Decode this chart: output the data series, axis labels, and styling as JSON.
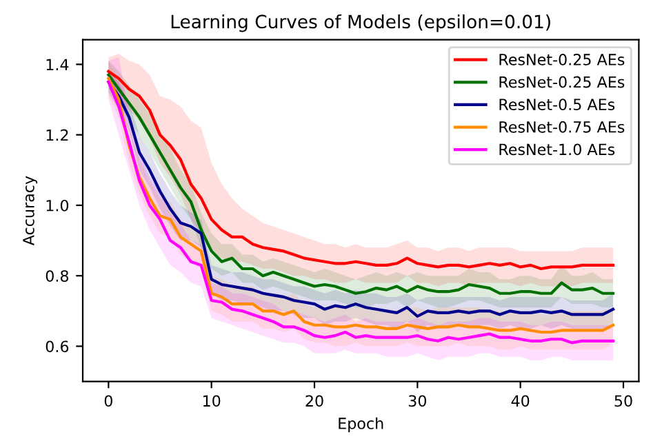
{
  "chart_data": {
    "type": "line",
    "title": "Learning Curves of Models (epsilon=0.01)",
    "xlabel": "Epoch",
    "ylabel": "Accuracy",
    "x": [
      0,
      1,
      2,
      3,
      4,
      5,
      6,
      7,
      8,
      9,
      10,
      11,
      12,
      13,
      14,
      15,
      16,
      17,
      18,
      19,
      20,
      21,
      22,
      23,
      24,
      25,
      26,
      27,
      28,
      29,
      30,
      31,
      32,
      33,
      34,
      35,
      36,
      37,
      38,
      39,
      40,
      41,
      42,
      43,
      44,
      45,
      46,
      47,
      48,
      49
    ],
    "xlim": [
      -2.5,
      51.5
    ],
    "xticks": [
      0,
      10,
      20,
      30,
      40,
      50
    ],
    "ylim": [
      0.5,
      1.47
    ],
    "yticks": [
      0.6,
      0.8,
      {
        "value": 1.0,
        "label": "1.0"
      },
      1.2,
      1.4
    ],
    "legend": "top right",
    "grid": false,
    "series": [
      {
        "name": "ResNet-0.25 AEs",
        "color": "#ff0000",
        "values": [
          1.38,
          1.36,
          1.33,
          1.31,
          1.27,
          1.2,
          1.17,
          1.13,
          1.06,
          1.02,
          0.96,
          0.93,
          0.91,
          0.91,
          0.89,
          0.88,
          0.875,
          0.87,
          0.86,
          0.85,
          0.845,
          0.84,
          0.835,
          0.835,
          0.84,
          0.835,
          0.83,
          0.83,
          0.835,
          0.85,
          0.835,
          0.83,
          0.825,
          0.83,
          0.83,
          0.825,
          0.83,
          0.835,
          0.83,
          0.835,
          0.825,
          0.83,
          0.82,
          0.825,
          0.825,
          0.825,
          0.83,
          0.83,
          0.83,
          0.83
        ],
        "upper": [
          1.42,
          1.43,
          1.41,
          1.4,
          1.37,
          1.31,
          1.3,
          1.28,
          1.24,
          1.22,
          1.12,
          1.06,
          1.02,
          0.99,
          0.97,
          0.95,
          0.94,
          0.93,
          0.92,
          0.91,
          0.9,
          0.89,
          0.89,
          0.88,
          0.89,
          0.88,
          0.88,
          0.88,
          0.89,
          0.9,
          0.88,
          0.88,
          0.87,
          0.88,
          0.88,
          0.87,
          0.88,
          0.88,
          0.88,
          0.88,
          0.87,
          0.87,
          0.87,
          0.87,
          0.87,
          0.87,
          0.88,
          0.88,
          0.88,
          0.88
        ],
        "lower": [
          1.34,
          1.31,
          1.27,
          1.24,
          1.19,
          1.12,
          1.08,
          1.03,
          0.96,
          0.92,
          0.87,
          0.85,
          0.84,
          0.84,
          0.83,
          0.82,
          0.82,
          0.81,
          0.8,
          0.8,
          0.79,
          0.79,
          0.78,
          0.78,
          0.79,
          0.78,
          0.78,
          0.78,
          0.78,
          0.8,
          0.78,
          0.78,
          0.77,
          0.78,
          0.78,
          0.77,
          0.78,
          0.78,
          0.78,
          0.78,
          0.77,
          0.78,
          0.77,
          0.77,
          0.77,
          0.77,
          0.78,
          0.78,
          0.78,
          0.78
        ]
      },
      {
        "name": "ResNet-0.25 AEs",
        "color": "#007000",
        "values": [
          1.37,
          1.33,
          1.29,
          1.25,
          1.2,
          1.15,
          1.1,
          1.05,
          1.01,
          0.93,
          0.87,
          0.84,
          0.85,
          0.82,
          0.82,
          0.8,
          0.81,
          0.8,
          0.79,
          0.78,
          0.77,
          0.775,
          0.77,
          0.76,
          0.75,
          0.755,
          0.765,
          0.76,
          0.77,
          0.755,
          0.77,
          0.76,
          0.755,
          0.755,
          0.76,
          0.775,
          0.77,
          0.765,
          0.75,
          0.75,
          0.755,
          0.755,
          0.75,
          0.75,
          0.78,
          0.76,
          0.76,
          0.765,
          0.75,
          0.75
        ],
        "upper": [
          1.41,
          1.38,
          1.34,
          1.3,
          1.26,
          1.21,
          1.16,
          1.1,
          1.06,
          0.98,
          0.92,
          0.89,
          0.89,
          0.86,
          0.86,
          0.84,
          0.85,
          0.84,
          0.83,
          0.82,
          0.81,
          0.82,
          0.81,
          0.8,
          0.79,
          0.8,
          0.81,
          0.8,
          0.81,
          0.8,
          0.81,
          0.8,
          0.8,
          0.8,
          0.8,
          0.82,
          0.81,
          0.81,
          0.79,
          0.79,
          0.8,
          0.8,
          0.79,
          0.79,
          0.83,
          0.8,
          0.8,
          0.81,
          0.79,
          0.79
        ],
        "lower": [
          1.33,
          1.29,
          1.24,
          1.2,
          1.15,
          1.1,
          1.05,
          1.0,
          0.96,
          0.88,
          0.82,
          0.8,
          0.81,
          0.78,
          0.78,
          0.76,
          0.77,
          0.76,
          0.75,
          0.74,
          0.73,
          0.73,
          0.73,
          0.72,
          0.71,
          0.71,
          0.72,
          0.72,
          0.73,
          0.71,
          0.73,
          0.72,
          0.71,
          0.71,
          0.72,
          0.73,
          0.73,
          0.72,
          0.71,
          0.71,
          0.71,
          0.71,
          0.71,
          0.71,
          0.74,
          0.72,
          0.72,
          0.72,
          0.71,
          0.71
        ]
      },
      {
        "name": "ResNet-0.5 AEs",
        "color": "#00008b",
        "values": [
          1.35,
          1.31,
          1.25,
          1.15,
          1.1,
          1.04,
          0.99,
          0.95,
          0.94,
          0.92,
          0.79,
          0.775,
          0.77,
          0.765,
          0.76,
          0.75,
          0.745,
          0.74,
          0.73,
          0.725,
          0.72,
          0.705,
          0.715,
          0.71,
          0.72,
          0.71,
          0.705,
          0.7,
          0.695,
          0.71,
          0.685,
          0.7,
          0.695,
          0.695,
          0.7,
          0.695,
          0.7,
          0.7,
          0.69,
          0.7,
          0.695,
          0.695,
          0.7,
          0.695,
          0.7,
          0.69,
          0.69,
          0.69,
          0.69,
          0.705
        ],
        "upper": [
          1.38,
          1.35,
          1.29,
          1.2,
          1.15,
          1.09,
          1.04,
          1.0,
          0.98,
          0.96,
          0.83,
          0.82,
          0.81,
          0.81,
          0.8,
          0.79,
          0.79,
          0.78,
          0.77,
          0.77,
          0.76,
          0.75,
          0.76,
          0.75,
          0.76,
          0.75,
          0.75,
          0.74,
          0.74,
          0.75,
          0.73,
          0.74,
          0.74,
          0.74,
          0.74,
          0.74,
          0.74,
          0.74,
          0.73,
          0.74,
          0.74,
          0.74,
          0.74,
          0.74,
          0.74,
          0.73,
          0.73,
          0.73,
          0.73,
          0.75
        ],
        "lower": [
          1.32,
          1.27,
          1.21,
          1.1,
          1.05,
          0.99,
          0.94,
          0.9,
          0.9,
          0.88,
          0.75,
          0.73,
          0.73,
          0.72,
          0.72,
          0.71,
          0.7,
          0.7,
          0.69,
          0.68,
          0.68,
          0.66,
          0.67,
          0.67,
          0.68,
          0.67,
          0.66,
          0.66,
          0.65,
          0.67,
          0.64,
          0.66,
          0.65,
          0.65,
          0.66,
          0.65,
          0.66,
          0.66,
          0.65,
          0.66,
          0.65,
          0.65,
          0.66,
          0.65,
          0.66,
          0.65,
          0.65,
          0.65,
          0.65,
          0.66
        ]
      },
      {
        "name": "ResNet-0.75 AEs",
        "color": "#ff8c00",
        "values": [
          1.36,
          1.3,
          1.17,
          1.08,
          1.02,
          0.97,
          0.96,
          0.91,
          0.89,
          0.87,
          0.75,
          0.74,
          0.72,
          0.72,
          0.72,
          0.7,
          0.7,
          0.69,
          0.7,
          0.67,
          0.66,
          0.66,
          0.655,
          0.655,
          0.66,
          0.655,
          0.655,
          0.65,
          0.65,
          0.66,
          0.655,
          0.65,
          0.655,
          0.655,
          0.66,
          0.655,
          0.655,
          0.65,
          0.645,
          0.645,
          0.65,
          0.645,
          0.64,
          0.64,
          0.645,
          0.645,
          0.645,
          0.645,
          0.645,
          0.66
        ],
        "upper": [
          1.41,
          1.35,
          1.22,
          1.13,
          1.07,
          1.02,
          1.01,
          0.96,
          0.94,
          0.92,
          0.8,
          0.79,
          0.77,
          0.77,
          0.77,
          0.75,
          0.75,
          0.74,
          0.75,
          0.72,
          0.71,
          0.71,
          0.71,
          0.71,
          0.71,
          0.71,
          0.71,
          0.7,
          0.7,
          0.71,
          0.71,
          0.7,
          0.71,
          0.71,
          0.71,
          0.71,
          0.71,
          0.7,
          0.7,
          0.7,
          0.7,
          0.7,
          0.69,
          0.69,
          0.7,
          0.7,
          0.7,
          0.7,
          0.7,
          0.71
        ],
        "lower": [
          1.31,
          1.25,
          1.12,
          1.03,
          0.97,
          0.92,
          0.91,
          0.86,
          0.84,
          0.82,
          0.7,
          0.69,
          0.67,
          0.67,
          0.67,
          0.65,
          0.65,
          0.64,
          0.65,
          0.62,
          0.61,
          0.61,
          0.6,
          0.6,
          0.61,
          0.6,
          0.6,
          0.6,
          0.6,
          0.61,
          0.6,
          0.6,
          0.6,
          0.6,
          0.61,
          0.6,
          0.6,
          0.6,
          0.59,
          0.59,
          0.6,
          0.59,
          0.59,
          0.59,
          0.59,
          0.59,
          0.59,
          0.59,
          0.59,
          0.61
        ]
      },
      {
        "name": "ResNet-1.0 AEs",
        "color": "#ff00ff",
        "values": [
          1.35,
          1.28,
          1.18,
          1.07,
          1.0,
          0.96,
          0.9,
          0.88,
          0.84,
          0.83,
          0.73,
          0.725,
          0.705,
          0.7,
          0.69,
          0.68,
          0.67,
          0.655,
          0.655,
          0.645,
          0.63,
          0.625,
          0.63,
          0.64,
          0.625,
          0.63,
          0.625,
          0.625,
          0.625,
          0.625,
          0.63,
          0.62,
          0.615,
          0.625,
          0.62,
          0.625,
          0.63,
          0.635,
          0.625,
          0.625,
          0.62,
          0.615,
          0.615,
          0.62,
          0.62,
          0.61,
          0.615,
          0.615,
          0.615,
          0.615
        ],
        "upper": [
          1.41,
          1.42,
          1.26,
          1.15,
          1.08,
          1.04,
          0.98,
          0.95,
          0.9,
          0.89,
          0.78,
          0.77,
          0.75,
          0.75,
          0.74,
          0.73,
          0.72,
          0.7,
          0.7,
          0.69,
          0.68,
          0.67,
          0.68,
          0.69,
          0.67,
          0.68,
          0.67,
          0.67,
          0.67,
          0.67,
          0.68,
          0.67,
          0.66,
          0.67,
          0.67,
          0.67,
          0.68,
          0.68,
          0.67,
          0.67,
          0.67,
          0.66,
          0.66,
          0.67,
          0.67,
          0.66,
          0.66,
          0.66,
          0.66,
          0.66
        ],
        "lower": [
          1.3,
          1.2,
          1.1,
          1.0,
          0.93,
          0.88,
          0.83,
          0.81,
          0.78,
          0.77,
          0.68,
          0.67,
          0.66,
          0.65,
          0.64,
          0.63,
          0.62,
          0.61,
          0.61,
          0.6,
          0.58,
          0.58,
          0.58,
          0.59,
          0.58,
          0.58,
          0.58,
          0.57,
          0.57,
          0.57,
          0.58,
          0.57,
          0.56,
          0.57,
          0.57,
          0.57,
          0.58,
          0.58,
          0.57,
          0.57,
          0.57,
          0.56,
          0.56,
          0.57,
          0.57,
          0.56,
          0.56,
          0.56,
          0.56,
          0.56
        ]
      }
    ]
  }
}
